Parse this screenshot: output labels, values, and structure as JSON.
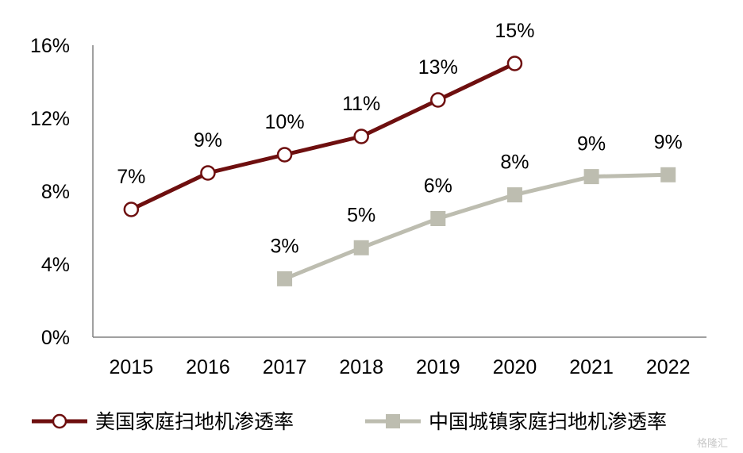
{
  "chart_data": {
    "type": "line",
    "categories": [
      "2015",
      "2016",
      "2017",
      "2018",
      "2019",
      "2020",
      "2021",
      "2022"
    ],
    "ylim": [
      0,
      16
    ],
    "yticks": [
      0,
      4,
      8,
      12,
      16
    ],
    "ytick_labels": [
      "0%",
      "4%",
      "8%",
      "12%",
      "16%"
    ],
    "grid": false,
    "legend_position": "bottom",
    "series": [
      {
        "name": "美国家庭扫地机渗透率",
        "color": "#6e0f0f",
        "marker": "circle",
        "values": [
          7,
          9,
          10,
          11,
          13,
          15,
          null,
          null
        ],
        "labels": [
          "7%",
          "9%",
          "10%",
          "11%",
          "13%",
          "15%",
          "",
          ""
        ]
      },
      {
        "name": "中国城镇家庭扫地机渗透率",
        "color": "#bdbdb0",
        "marker": "square",
        "values": [
          null,
          null,
          3.2,
          4.9,
          6.5,
          7.8,
          8.8,
          8.9
        ],
        "labels": [
          "",
          "",
          "3%",
          "5%",
          "6%",
          "8%",
          "9%",
          "9%"
        ]
      }
    ]
  },
  "watermark": "格隆汇"
}
